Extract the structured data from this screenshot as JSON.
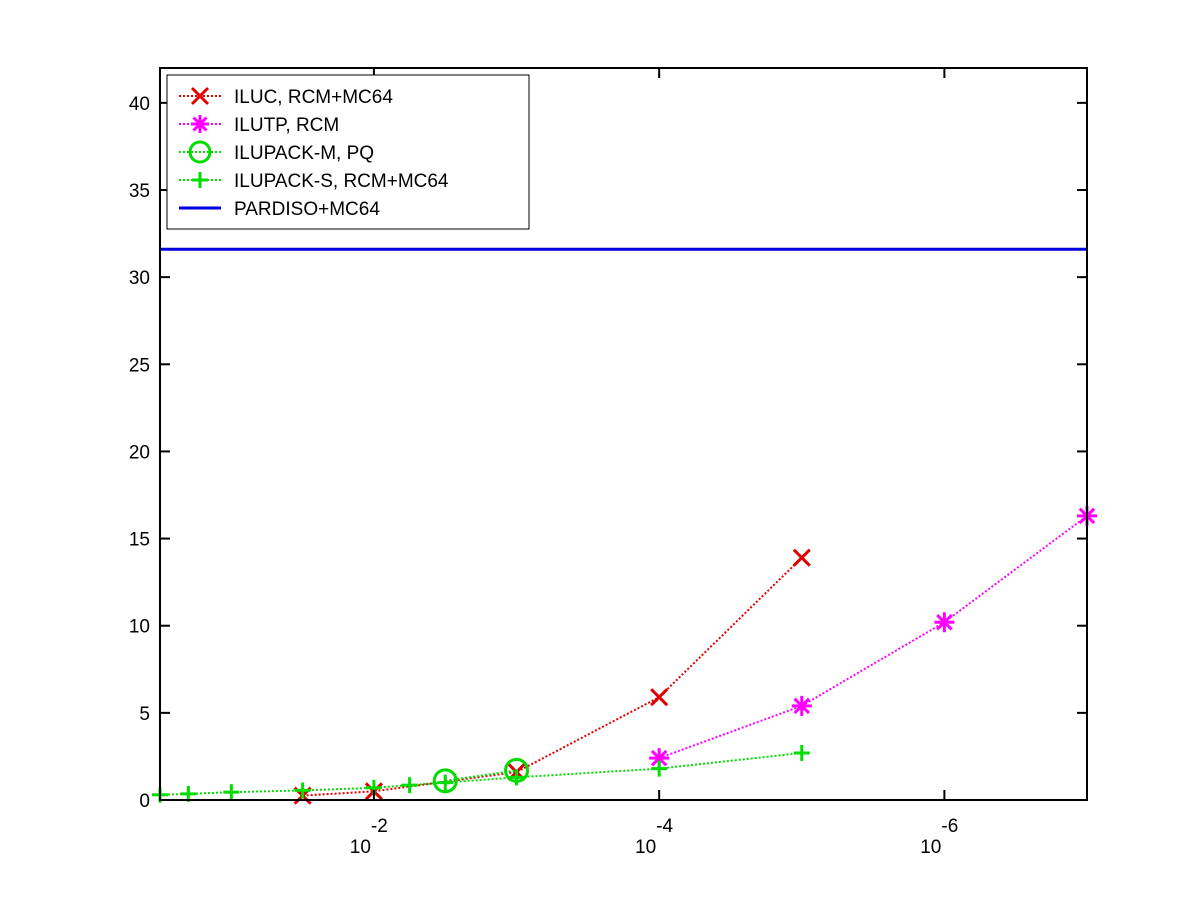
{
  "chart_data": {
    "type": "line",
    "title": "",
    "xlabel": "",
    "ylabel": "",
    "x_scale": "log-reversed",
    "xlim": [
      0.3162,
      1e-07
    ],
    "ylim": [
      0,
      42
    ],
    "grid": false,
    "legend_position": "top-left",
    "x_ticks": [
      {
        "value": 0.01,
        "base": "10",
        "exponent": "-2"
      },
      {
        "value": 0.0001,
        "base": "10",
        "exponent": "-4"
      },
      {
        "value": 1e-06,
        "base": "10",
        "exponent": "-6"
      }
    ],
    "y_ticks": [
      {
        "value": 0,
        "label": "0"
      },
      {
        "value": 5,
        "label": "5"
      },
      {
        "value": 10,
        "label": "10"
      },
      {
        "value": 15,
        "label": "15"
      },
      {
        "value": 20,
        "label": "20"
      },
      {
        "value": 25,
        "label": "25"
      },
      {
        "value": 30,
        "label": "30"
      },
      {
        "value": 35,
        "label": "35"
      },
      {
        "value": 40,
        "label": "40"
      }
    ],
    "series": [
      {
        "name": "ILUC, RCM+MC64",
        "color": "#e00000",
        "marker": "x",
        "line_style": "dotted",
        "x": [
          0.0316,
          0.01,
          0.001,
          0.0001,
          1e-05
        ],
        "y": [
          0.25,
          0.5,
          1.6,
          5.9,
          13.9
        ]
      },
      {
        "name": "ILUTP, RCM",
        "color": "#ff00ff",
        "marker": "asterisk",
        "line_style": "dotted",
        "x": [
          0.0001,
          1e-05,
          1e-06,
          1e-07
        ],
        "y": [
          2.4,
          5.4,
          10.2,
          16.3
        ]
      },
      {
        "name": "ILUPACK-M, PQ",
        "color": "#00dd00",
        "marker": "circle",
        "line_style": "dotted",
        "x": [
          0.00316,
          0.001
        ],
        "y": [
          1.1,
          1.7
        ]
      },
      {
        "name": "ILUPACK-S, RCM+MC64",
        "color": "#00dd00",
        "marker": "plus",
        "line_style": "dotted",
        "x": [
          0.3162,
          0.2,
          0.1,
          0.0316,
          0.01,
          0.00562,
          0.00316,
          0.001,
          0.0001,
          1e-05
        ],
        "y": [
          0.3,
          0.35,
          0.45,
          0.55,
          0.7,
          0.85,
          1.0,
          1.3,
          1.8,
          2.7
        ]
      },
      {
        "name": "PARDISO+MC64",
        "color": "#0000e0",
        "marker": "none",
        "line_style": "solid",
        "x": [
          0.3162,
          1e-07
        ],
        "y": [
          31.6,
          31.6
        ]
      }
    ]
  }
}
